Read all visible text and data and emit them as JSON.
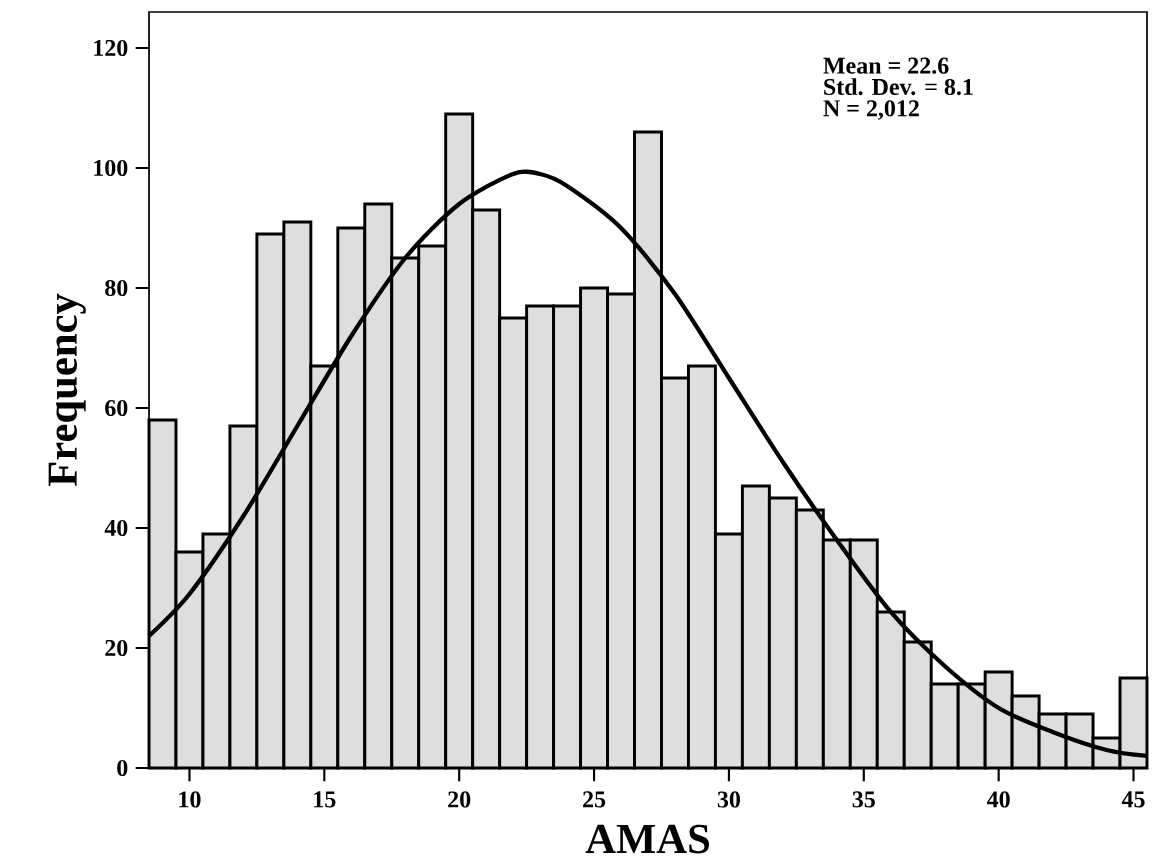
{
  "chart_data": {
    "type": "histogram",
    "xlabel": "AMAS",
    "ylabel": "Frequency",
    "annotations": [
      "Mean = 22.6",
      "Std. Dev. = 8.1",
      "N = 2,012"
    ],
    "xlim": [
      8.5,
      45.5
    ],
    "xticks": [
      10,
      15,
      20,
      25,
      30,
      35,
      40,
      45
    ],
    "ylim": [
      0,
      126
    ],
    "yticks": [
      0,
      20,
      40,
      60,
      80,
      100,
      120
    ],
    "series": [
      {
        "color": "#dedede",
        "bins": [
          8.5,
          9.5,
          10.5,
          11.5,
          12.5,
          13.5,
          14.5,
          15.5,
          16.5,
          17.5,
          18.5,
          19.5,
          20.5,
          21.5,
          22.5,
          23.5,
          24.5,
          25.5,
          26.5,
          27.5,
          28.5,
          29.5,
          30.5,
          31.5,
          32.5,
          33.5,
          34.5,
          35.5,
          36.5,
          37.5,
          38.5,
          39.5,
          40.5,
          41.5,
          42.5,
          43.5,
          44.5,
          45.5
        ],
        "values": [
          58,
          36,
          39,
          57,
          89,
          91,
          67,
          90,
          94,
          85,
          87,
          109,
          93,
          75,
          77,
          77,
          80,
          79,
          106,
          65,
          67,
          39,
          47,
          45,
          43,
          38,
          38,
          26,
          21,
          14,
          14,
          16,
          12,
          9,
          9,
          5,
          15
        ]
      },
      {
        "type": "line",
        "color": "#000000",
        "line_style": "solid",
        "x": [
          8.5,
          10,
          12,
          14,
          16,
          18,
          20,
          22,
          23,
          24,
          26,
          28,
          30,
          32,
          34,
          36,
          38,
          40,
          42,
          44,
          45.5
        ],
        "values": [
          22,
          29,
          42,
          57,
          72,
          85,
          94,
          99,
          99,
          97,
          90,
          79,
          65,
          51,
          38,
          26,
          17,
          10,
          6,
          3,
          2
        ]
      }
    ]
  }
}
